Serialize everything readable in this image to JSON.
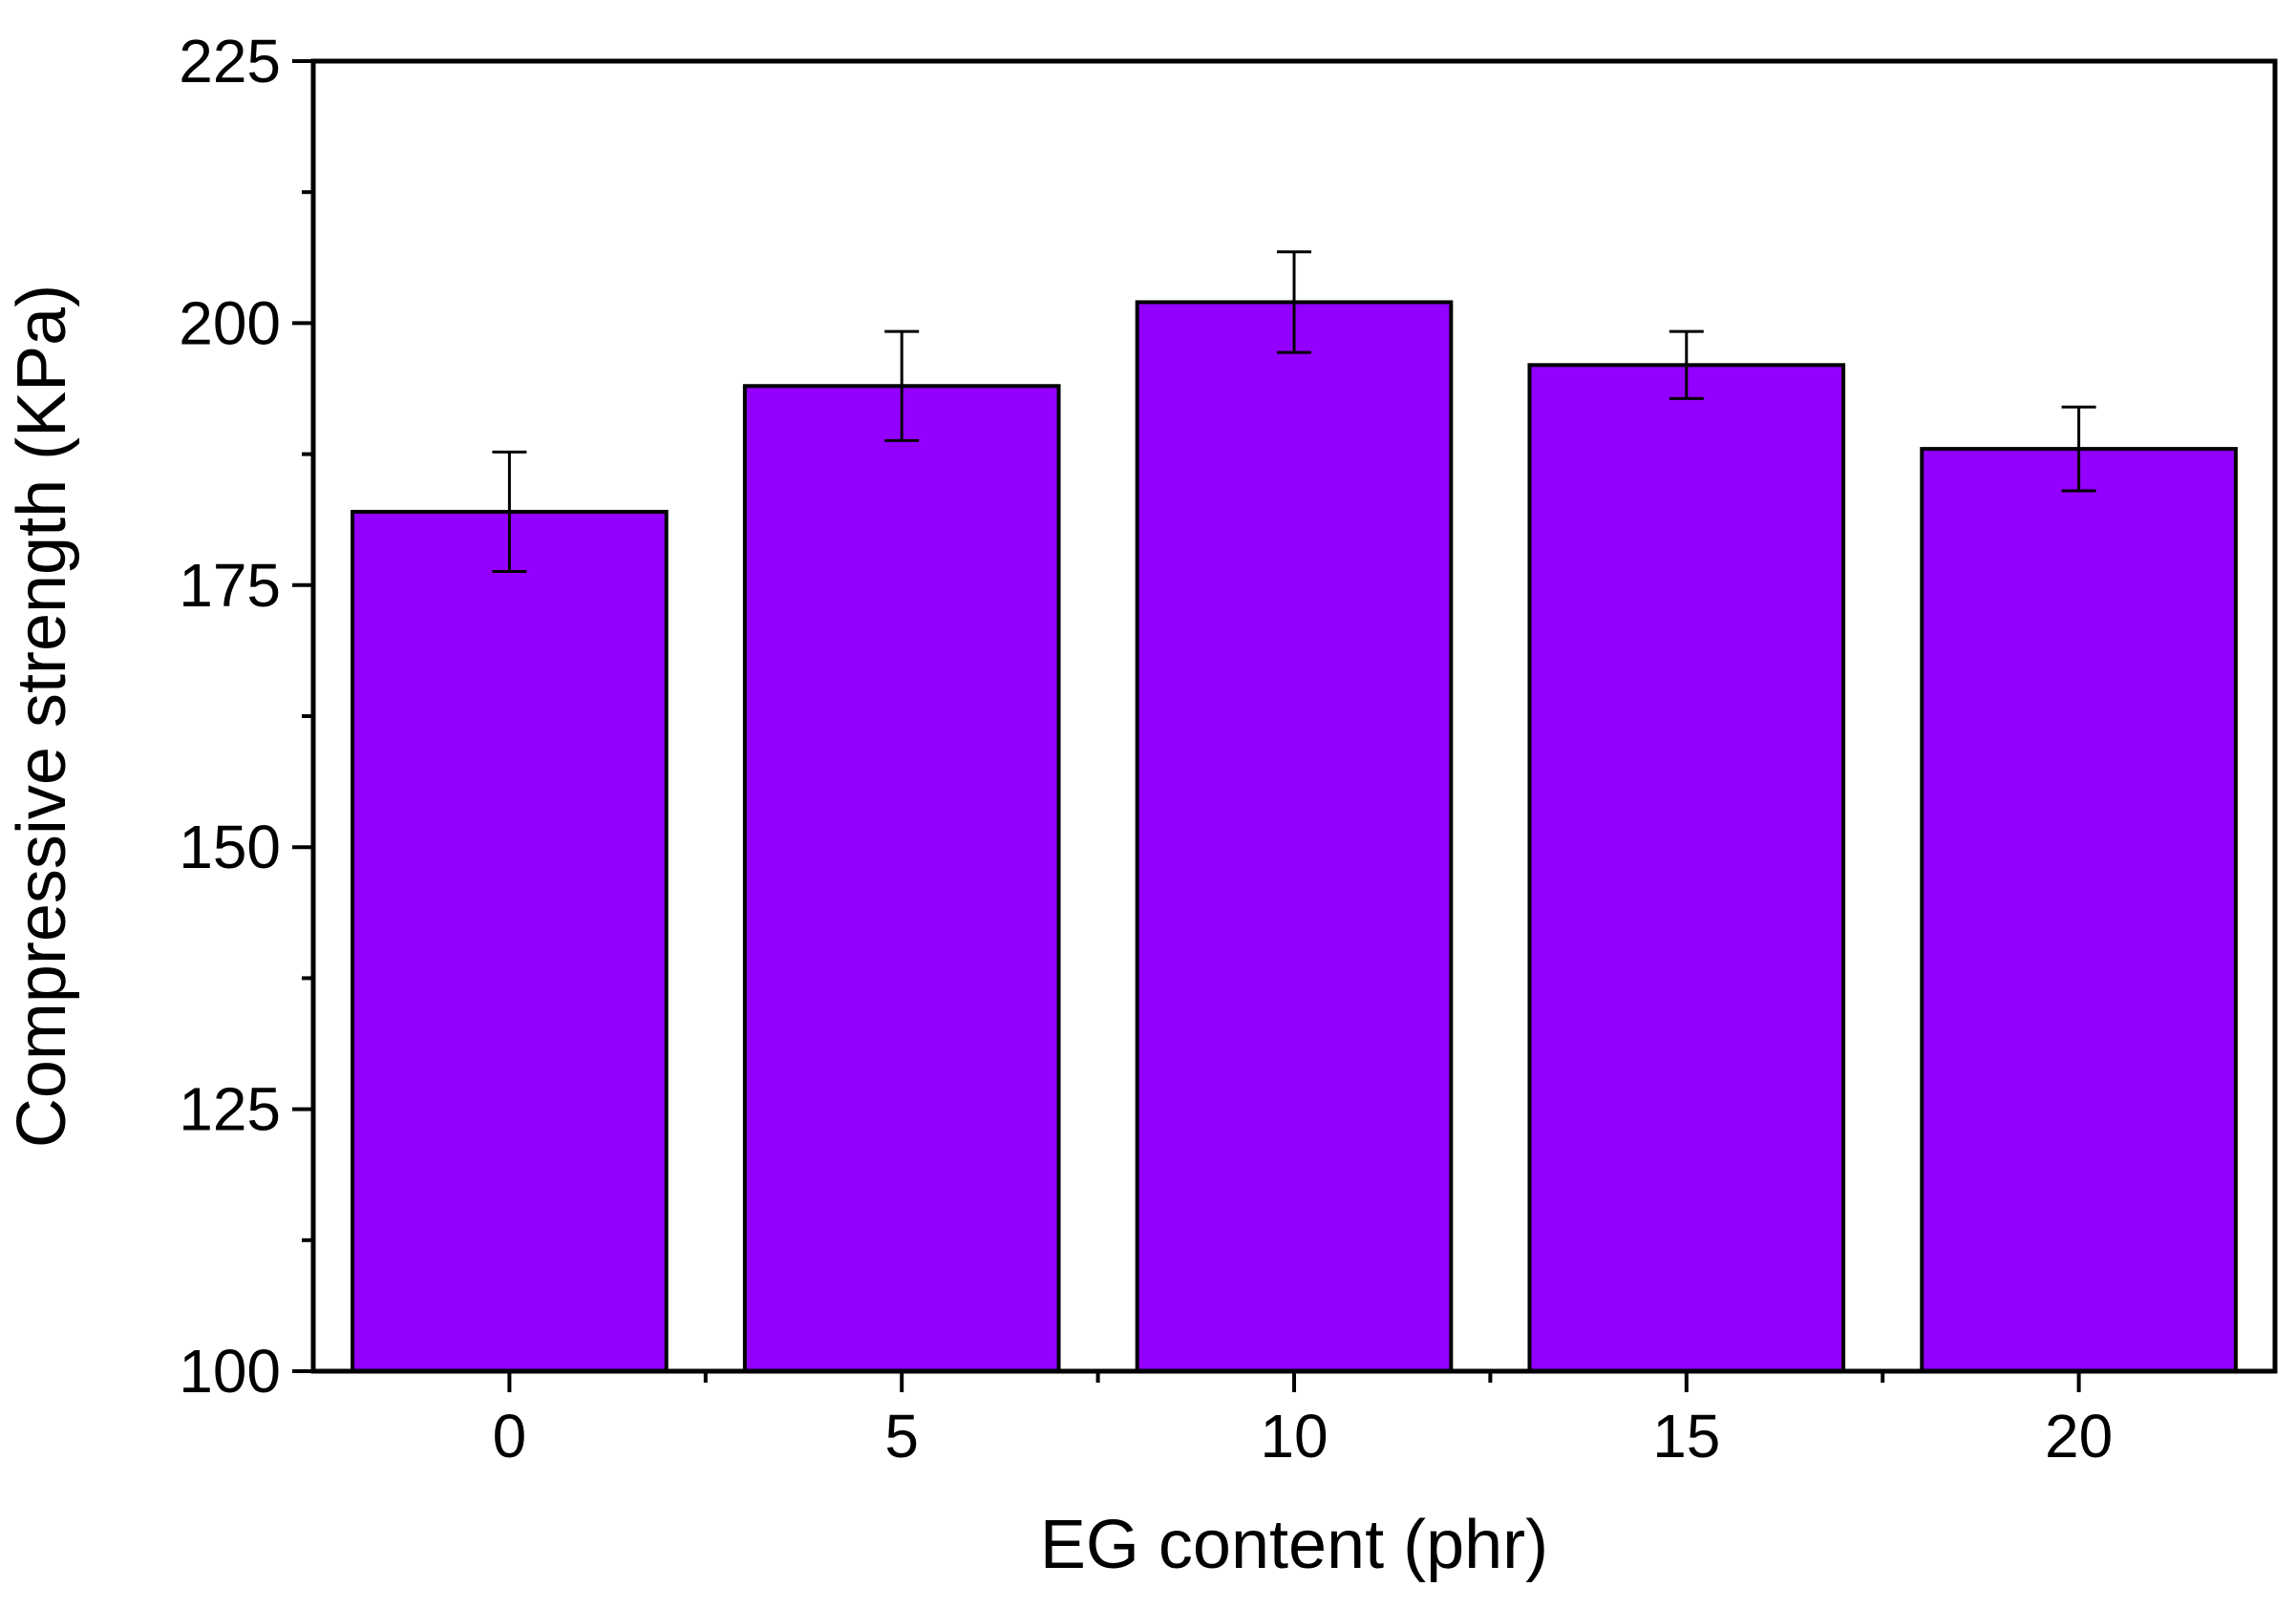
{
  "chart_data": {
    "type": "bar",
    "title": "",
    "xlabel": "EG content (phr)",
    "ylabel": "Compressive strength (KPa)",
    "categories": [
      "0",
      "5",
      "10",
      "15",
      "20"
    ],
    "values": [
      182,
      194,
      202,
      196,
      188
    ],
    "error": [
      5.7,
      5.2,
      4.8,
      3.2,
      4.0
    ],
    "ylim": [
      100,
      225
    ],
    "yticks": [
      "100",
      "125",
      "150",
      "175",
      "200",
      "225"
    ],
    "xticks": [
      "0",
      "5",
      "10",
      "15",
      "20"
    ],
    "grid": false,
    "legend": "none",
    "bar_color": "#9400FF",
    "edge_color": "#000000"
  }
}
